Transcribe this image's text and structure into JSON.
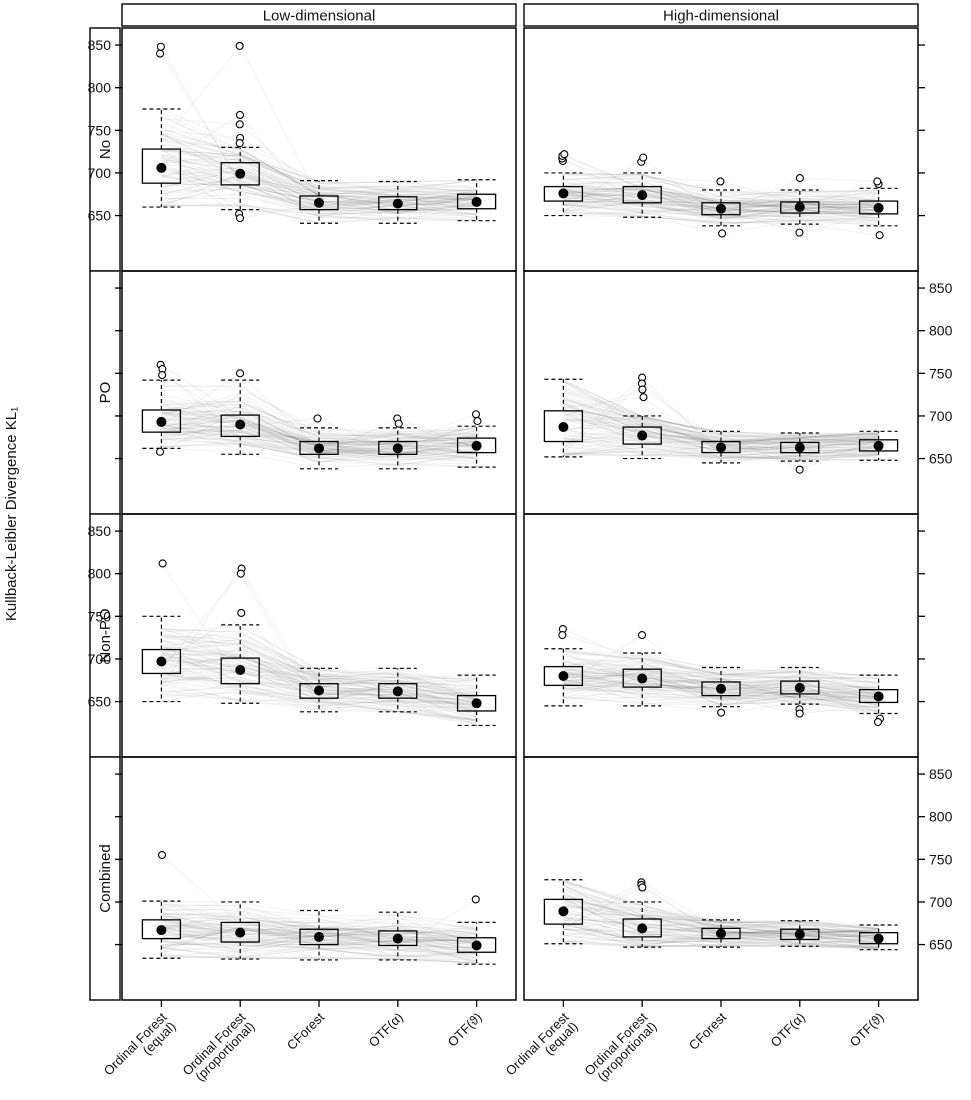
{
  "figure": {
    "ylabel": "Kullback-Leibler Divergence KL₁"
  },
  "chart_data": {
    "type": "boxplot",
    "columns": [
      "Low-dimensional",
      "High-dimensional"
    ],
    "rows": [
      "No",
      "PO",
      "Non-PO",
      "Combined"
    ],
    "methods": [
      {
        "label": "Ordinal Forest (equal)",
        "label_lines": [
          "Ordinal Forest",
          "(equal)"
        ]
      },
      {
        "label": "Ordinal Forest (proportional)",
        "label_lines": [
          "Ordinal Forest",
          "(proportional)"
        ]
      },
      {
        "label": "CForest",
        "label_lines": [
          "CForest"
        ]
      },
      {
        "label": "OTF(α)",
        "label_lines": [
          "OTF(α)"
        ]
      },
      {
        "label": "OTF(ϑ)",
        "label_lines": [
          "OTF(ϑ)"
        ]
      }
    ],
    "ylabel": "Kullback-Leibler Divergence KL₁",
    "yticks": [
      650,
      700,
      750,
      800,
      850
    ],
    "ylim": [
      585,
      870
    ],
    "legend_position": "none",
    "grid": false,
    "style": {
      "box_color": "#000000",
      "median_dot_color": "#000000",
      "outlier_shape": "open-circle",
      "whisker_style": "dashed",
      "spaghetti_lines": {
        "count": 80,
        "color": "#000000",
        "opacity": 0.055
      }
    },
    "panels": [
      {
        "row": "No",
        "col": "Low-dimensional",
        "boxes": [
          {
            "lo": 660,
            "q1": 688,
            "median": 706,
            "q3": 728,
            "hi": 775,
            "outliers": [
              840,
              848
            ]
          },
          {
            "lo": 657,
            "q1": 686,
            "median": 699,
            "q3": 712,
            "hi": 730,
            "outliers": [
              849,
              768,
              757,
              741,
              735,
              652,
              647
            ]
          },
          {
            "lo": 641,
            "q1": 657,
            "median": 665,
            "q3": 673,
            "hi": 691,
            "outliers": []
          },
          {
            "lo": 641,
            "q1": 657,
            "median": 664,
            "q3": 672,
            "hi": 690,
            "outliers": []
          },
          {
            "lo": 644,
            "q1": 658,
            "median": 666,
            "q3": 675,
            "hi": 692,
            "outliers": []
          }
        ]
      },
      {
        "row": "No",
        "col": "High-dimensional",
        "boxes": [
          {
            "lo": 650,
            "q1": 667,
            "median": 676,
            "q3": 684,
            "hi": 700,
            "outliers": [
              714,
              717,
              720,
              722
            ]
          },
          {
            "lo": 648,
            "q1": 665,
            "median": 674,
            "q3": 684,
            "hi": 700,
            "outliers": [
              713,
              718
            ]
          },
          {
            "lo": 638,
            "q1": 651,
            "median": 658,
            "q3": 665,
            "hi": 680,
            "outliers": [
              690,
              629
            ]
          },
          {
            "lo": 640,
            "q1": 653,
            "median": 660,
            "q3": 666,
            "hi": 680,
            "outliers": [
              694,
              630
            ]
          },
          {
            "lo": 638,
            "q1": 652,
            "median": 659,
            "q3": 667,
            "hi": 682,
            "outliers": [
              687,
              690,
              627
            ]
          }
        ]
      },
      {
        "row": "PO",
        "col": "Low-dimensional",
        "boxes": [
          {
            "lo": 662,
            "q1": 681,
            "median": 693,
            "q3": 707,
            "hi": 742,
            "outliers": [
              760,
              755,
              748,
              658
            ]
          },
          {
            "lo": 655,
            "q1": 676,
            "median": 690,
            "q3": 701,
            "hi": 742,
            "outliers": [
              750
            ]
          },
          {
            "lo": 638,
            "q1": 655,
            "median": 662,
            "q3": 670,
            "hi": 686,
            "outliers": [
              697
            ]
          },
          {
            "lo": 638,
            "q1": 655,
            "median": 662,
            "q3": 670,
            "hi": 686,
            "outliers": [
              697,
              691
            ]
          },
          {
            "lo": 640,
            "q1": 657,
            "median": 665,
            "q3": 674,
            "hi": 688,
            "outliers": [
              702,
              694
            ]
          }
        ]
      },
      {
        "row": "PO",
        "col": "High-dimensional",
        "boxes": [
          {
            "lo": 652,
            "q1": 670,
            "median": 687,
            "q3": 706,
            "hi": 743,
            "outliers": []
          },
          {
            "lo": 650,
            "q1": 667,
            "median": 677,
            "q3": 687,
            "hi": 700,
            "outliers": [
              745,
              738,
              731,
              722
            ]
          },
          {
            "lo": 645,
            "q1": 657,
            "median": 663,
            "q3": 670,
            "hi": 682,
            "outliers": []
          },
          {
            "lo": 647,
            "q1": 657,
            "median": 663,
            "q3": 669,
            "hi": 680,
            "outliers": [
              637
            ]
          },
          {
            "lo": 648,
            "q1": 659,
            "median": 665,
            "q3": 672,
            "hi": 682,
            "outliers": []
          }
        ]
      },
      {
        "row": "Non-PO",
        "col": "Low-dimensional",
        "boxes": [
          {
            "lo": 650,
            "q1": 683,
            "median": 697,
            "q3": 711,
            "hi": 750,
            "outliers": [
              812
            ]
          },
          {
            "lo": 648,
            "q1": 671,
            "median": 687,
            "q3": 701,
            "hi": 740,
            "outliers": [
              806,
              800,
              754
            ]
          },
          {
            "lo": 638,
            "q1": 654,
            "median": 663,
            "q3": 671,
            "hi": 689,
            "outliers": []
          },
          {
            "lo": 638,
            "q1": 654,
            "median": 662,
            "q3": 671,
            "hi": 689,
            "outliers": []
          },
          {
            "lo": 622,
            "q1": 639,
            "median": 648,
            "q3": 657,
            "hi": 681,
            "outliers": []
          }
        ]
      },
      {
        "row": "Non-PO",
        "col": "High-dimensional",
        "boxes": [
          {
            "lo": 645,
            "q1": 669,
            "median": 680,
            "q3": 691,
            "hi": 712,
            "outliers": [
              735,
              728
            ]
          },
          {
            "lo": 645,
            "q1": 667,
            "median": 677,
            "q3": 688,
            "hi": 707,
            "outliers": [
              728
            ]
          },
          {
            "lo": 644,
            "q1": 657,
            "median": 665,
            "q3": 673,
            "hi": 690,
            "outliers": [
              637
            ]
          },
          {
            "lo": 647,
            "q1": 659,
            "median": 666,
            "q3": 674,
            "hi": 690,
            "outliers": [
              641,
              636
            ]
          },
          {
            "lo": 636,
            "q1": 649,
            "median": 656,
            "q3": 664,
            "hi": 681,
            "outliers": [
              630,
              626
            ]
          }
        ]
      },
      {
        "row": "Combined",
        "col": "Low-dimensional",
        "boxes": [
          {
            "lo": 634,
            "q1": 657,
            "median": 667,
            "q3": 679,
            "hi": 701,
            "outliers": [
              755
            ]
          },
          {
            "lo": 633,
            "q1": 653,
            "median": 664,
            "q3": 676,
            "hi": 700,
            "outliers": []
          },
          {
            "lo": 632,
            "q1": 650,
            "median": 659,
            "q3": 668,
            "hi": 690,
            "outliers": []
          },
          {
            "lo": 632,
            "q1": 649,
            "median": 657,
            "q3": 666,
            "hi": 688,
            "outliers": []
          },
          {
            "lo": 627,
            "q1": 641,
            "median": 649,
            "q3": 658,
            "hi": 676,
            "outliers": [
              703
            ]
          }
        ]
      },
      {
        "row": "Combined",
        "col": "High-dimensional",
        "boxes": [
          {
            "lo": 651,
            "q1": 674,
            "median": 689,
            "q3": 703,
            "hi": 726,
            "outliers": []
          },
          {
            "lo": 647,
            "q1": 659,
            "median": 669,
            "q3": 680,
            "hi": 700,
            "outliers": [
              723,
              720,
              717
            ]
          },
          {
            "lo": 647,
            "q1": 657,
            "median": 663,
            "q3": 669,
            "hi": 679,
            "outliers": []
          },
          {
            "lo": 648,
            "q1": 656,
            "median": 662,
            "q3": 668,
            "hi": 678,
            "outliers": []
          },
          {
            "lo": 644,
            "q1": 651,
            "median": 657,
            "q3": 664,
            "hi": 673,
            "outliers": []
          }
        ]
      }
    ]
  }
}
